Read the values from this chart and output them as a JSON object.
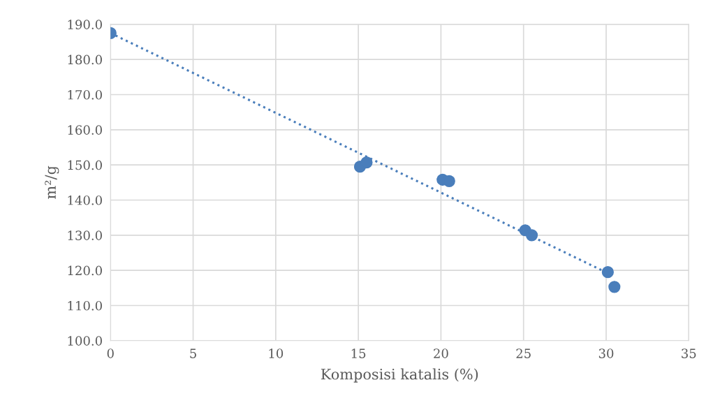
{
  "chart_data": {
    "type": "scatter",
    "xlabel": "Komposisi katalis (%)",
    "ylabel": "m²/g",
    "xlim": [
      0,
      35
    ],
    "xticks": [
      0,
      5,
      10,
      15,
      20,
      25,
      30,
      35
    ],
    "ylim": [
      100,
      190
    ],
    "yticks": [
      {
        "value": 100,
        "label": "100.0"
      },
      {
        "value": 110,
        "label": "110.0"
      },
      {
        "value": 120,
        "label": "120.0"
      },
      {
        "value": 130,
        "label": "130.0"
      },
      {
        "value": 140,
        "label": "140.0"
      },
      {
        "value": 150,
        "label": "150.0"
      },
      {
        "value": 160,
        "label": "160.0"
      },
      {
        "value": 170,
        "label": "170.0"
      },
      {
        "value": 180,
        "label": "180.0"
      },
      {
        "value": 190,
        "label": "190.0"
      }
    ],
    "grid": true,
    "legend": false,
    "marker": "circle",
    "series": [
      {
        "color": "#4a7ebb",
        "x": [
          0,
          15.1,
          15.5,
          20.1,
          20.5,
          25.1,
          25.5,
          30.1,
          30.5
        ],
        "values": [
          187.5,
          149.5,
          150.7,
          145.8,
          145.4,
          131.4,
          130.0,
          119.5,
          115.3
        ]
      },
      {
        "type": "line",
        "color": "#4a7ebb",
        "line_style": "dotted",
        "marker": "none",
        "x": [
          0,
          30.5
        ],
        "values": [
          187.5,
          118.3
        ]
      }
    ]
  }
}
